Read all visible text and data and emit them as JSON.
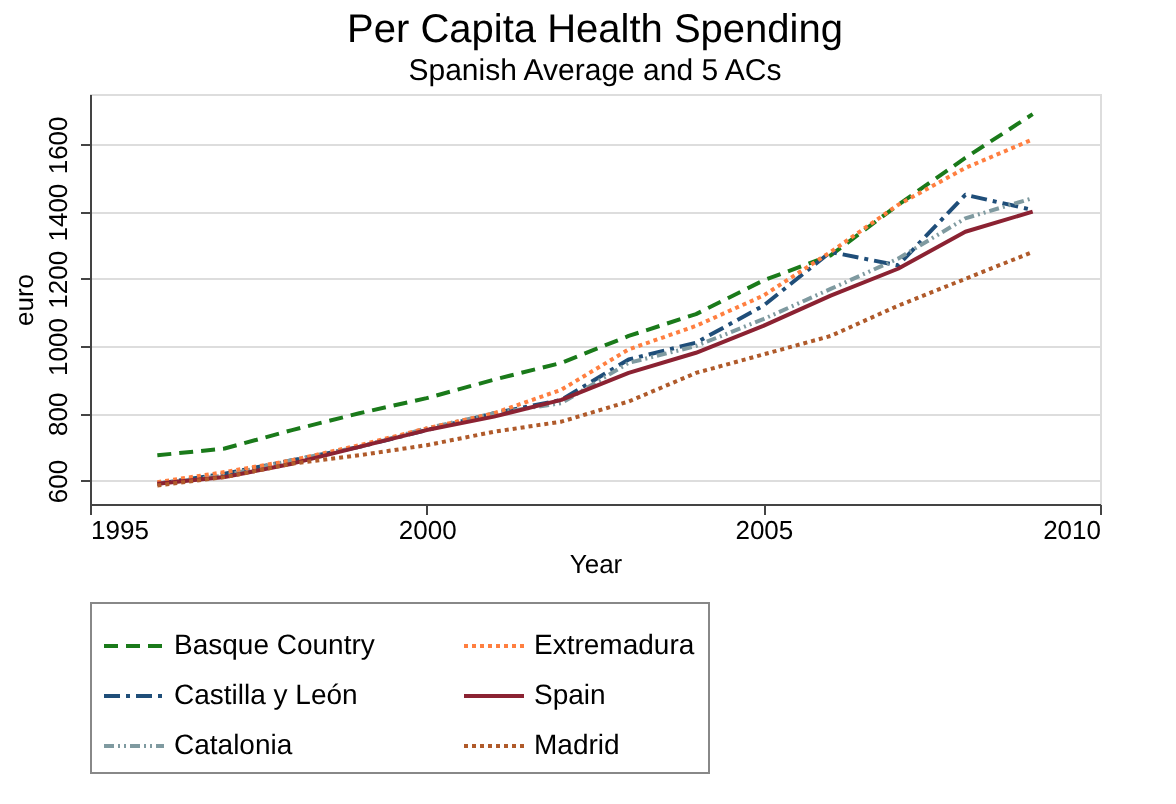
{
  "chart_data": {
    "type": "line",
    "title": "Per Capita Health Spending",
    "subtitle": "Spanish Average and 5 ACs",
    "xlabel": "Year",
    "ylabel": "euro",
    "x": [
      1996,
      1997,
      1998,
      1999,
      2000,
      2001,
      2002,
      2003,
      2004,
      2005,
      2006,
      2007,
      2008,
      2009
    ],
    "xlim": [
      1995,
      2010
    ],
    "xticks": [
      1995,
      2000,
      2005,
      2010
    ],
    "ylim": [
      530,
      1750
    ],
    "yticks": [
      600,
      800,
      1000,
      1200,
      1400,
      1600
    ],
    "grid": "y",
    "legend": "bottom",
    "series": [
      {
        "name": "Basque Country",
        "color": "#1a7a1a",
        "line_style": "dashed",
        "values": [
          675,
          695,
          750,
          800,
          845,
          900,
          950,
          1030,
          1095,
          1195,
          1270,
          1420,
          1560,
          1690
        ]
      },
      {
        "name": "Castilla y León",
        "color": "#1f4e79",
        "line_style": "dashdot",
        "values": [
          590,
          620,
          660,
          700,
          750,
          800,
          840,
          960,
          1010,
          1120,
          1280,
          1240,
          1450,
          1405
        ]
      },
      {
        "name": "Catalonia",
        "color": "#7f9aa0",
        "line_style": "dashdotdot",
        "values": [
          590,
          615,
          660,
          700,
          755,
          800,
          830,
          950,
          1000,
          1080,
          1170,
          1260,
          1380,
          1440
        ]
      },
      {
        "name": "Extremadura",
        "color": "#ff7f40",
        "line_style": "dotted",
        "values": [
          595,
          625,
          660,
          705,
          755,
          800,
          870,
          990,
          1060,
          1150,
          1280,
          1420,
          1530,
          1615
        ]
      },
      {
        "name": "Spain",
        "color": "#8b2232",
        "line_style": "solid",
        "values": [
          590,
          610,
          650,
          700,
          750,
          790,
          840,
          920,
          980,
          1060,
          1150,
          1230,
          1340,
          1400
        ]
      },
      {
        "name": "Madrid",
        "color": "#b05a2a",
        "line_style": "dotted",
        "values": [
          585,
          610,
          650,
          675,
          705,
          745,
          775,
          835,
          920,
          975,
          1030,
          1120,
          1200,
          1280
        ]
      }
    ]
  }
}
